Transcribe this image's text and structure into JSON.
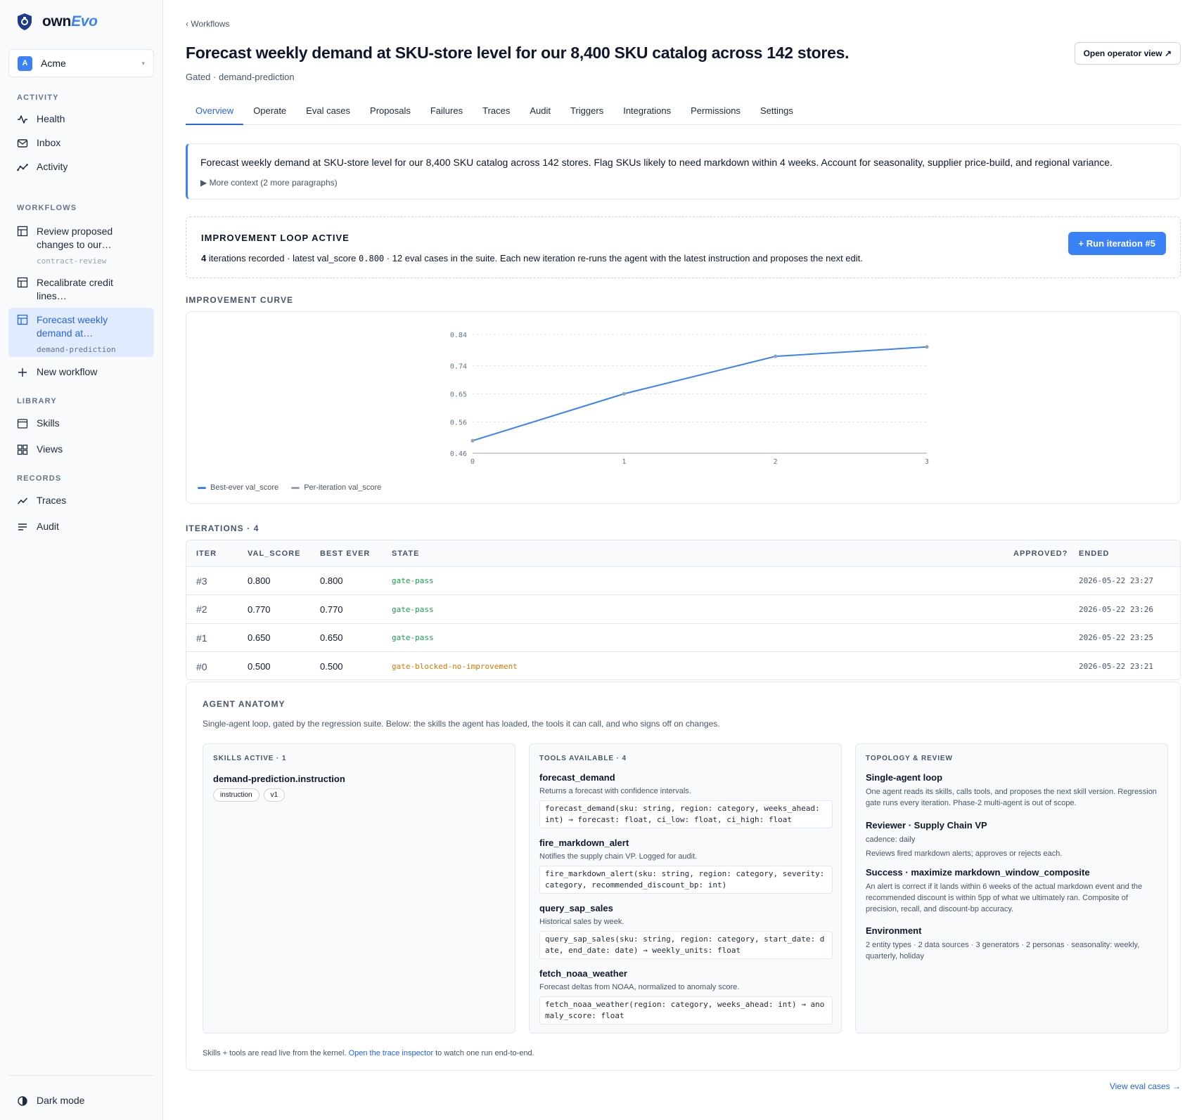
{
  "brand": {
    "name_prefix": "own",
    "name_suffix": "Evo"
  },
  "org": {
    "avatar": "A",
    "name": "Acme"
  },
  "sidebar": {
    "sections": {
      "activity": "ACTIVITY",
      "workflows": "WORKFLOWS",
      "library": "LIBRARY",
      "records": "RECORDS"
    },
    "activity_items": [
      {
        "label": "Health",
        "icon": "pulse-icon"
      },
      {
        "label": "Inbox",
        "icon": "inbox-icon"
      },
      {
        "label": "Activity",
        "icon": "activity-icon"
      }
    ],
    "workflows": [
      {
        "label": "Review proposed changes to our…",
        "slug": "contract-review"
      },
      {
        "label": "Recalibrate credit lines…",
        "slug": "credit-risk"
      },
      {
        "label": "Forecast weekly demand at…",
        "slug": "demand-prediction"
      }
    ],
    "new_workflow": "New workflow",
    "library_items": [
      {
        "label": "Skills",
        "icon": "window-icon"
      },
      {
        "label": "Views",
        "icon": "grid-icon"
      }
    ],
    "records_items": [
      {
        "label": "Traces",
        "icon": "trend-icon"
      },
      {
        "label": "Audit",
        "icon": "list-icon"
      }
    ],
    "dark_mode": "Dark mode"
  },
  "header": {
    "breadcrumb": "‹ Workflows",
    "title": "Forecast weekly demand at SKU-store level for our 8,400 SKU catalog across 142 stores.",
    "subtitle": "Gated · demand-prediction",
    "operator_button": "Open operator view ↗"
  },
  "tabs": [
    "Overview",
    "Operate",
    "Eval cases",
    "Proposals",
    "Failures",
    "Traces",
    "Audit",
    "Triggers",
    "Integrations",
    "Permissions",
    "Settings"
  ],
  "instruction": {
    "text": "Forecast weekly demand at SKU-store level for our 8,400 SKU catalog across 142 stores. Flag SKUs likely to need markdown within 4 weeks. Account for seasonality, supplier price-build, and regional variance.",
    "more": "▶  More context (2 more paragraphs)"
  },
  "loop": {
    "title": "IMPROVEMENT LOOP ACTIVE",
    "iterations": "4",
    "text_a": " iterations recorded · latest val_score ",
    "latest_score": "0.800",
    "text_b": " · 12 eval cases in the suite. Each new iteration re-runs the agent with the latest instruction and proposes the next edit.",
    "run_button": "+ Run iteration #5"
  },
  "curve_label": "IMPROVEMENT CURVE",
  "chart_data": {
    "type": "line",
    "x": [
      0,
      1,
      2,
      3
    ],
    "series": [
      {
        "name": "Best-ever val_score",
        "values": [
          0.5,
          0.65,
          0.77,
          0.8
        ],
        "color": "#3b82f6"
      },
      {
        "name": "Per-iteration val_score",
        "values": [
          0.5,
          0.65,
          0.77,
          0.8
        ],
        "color": "#94a3b8"
      }
    ],
    "y_ticks": [
      "0.84",
      "0.74",
      "0.65",
      "0.56",
      "0.46"
    ],
    "x_ticks": [
      "0",
      "1",
      "2",
      "3"
    ],
    "ylim": [
      0.46,
      0.84
    ],
    "grid": true,
    "legend": "bottom-left"
  },
  "iterations_label": "ITERATIONS · 4",
  "table": {
    "headers": {
      "iter": "ITER",
      "val": "VAL_SCORE",
      "best": "BEST EVER",
      "state": "STATE",
      "approved": "APPROVED?",
      "ended": "ENDED"
    },
    "rows": [
      {
        "iter": "#3",
        "val": "0.800",
        "best": "0.800",
        "state": "gate-pass",
        "ended": "2026-05-22 23:27"
      },
      {
        "iter": "#2",
        "val": "0.770",
        "best": "0.770",
        "state": "gate-pass",
        "ended": "2026-05-22 23:26"
      },
      {
        "iter": "#1",
        "val": "0.650",
        "best": "0.650",
        "state": "gate-pass",
        "ended": "2026-05-22 23:25"
      },
      {
        "iter": "#0",
        "val": "0.500",
        "best": "0.500",
        "state": "gate-blocked-no-improvement",
        "ended": "2026-05-22 23:21"
      }
    ]
  },
  "anatomy": {
    "title": "AGENT ANATOMY",
    "desc": "Single-agent loop, gated by the regression suite. Below: the skills the agent has loaded, the tools it can call, and who signs off on changes.",
    "skills": {
      "label": "SKILLS ACTIVE · 1",
      "name": "demand-prediction.instruction",
      "pills": [
        "instruction",
        "v1"
      ]
    },
    "tools": {
      "label": "TOOLS AVAILABLE · 4",
      "items": [
        {
          "name": "forecast_demand",
          "desc": "Returns a forecast with confidence intervals.",
          "sig": "forecast_demand(sku: string, region: category, weeks_ahead:\nint) → forecast: float, ci_low: float, ci_high: float"
        },
        {
          "name": "fire_markdown_alert",
          "desc": "Notifies the supply chain VP. Logged for audit.",
          "sig": "fire_markdown_alert(sku: string, region: category, severity:\ncategory, recommended_discount_bp: int)"
        },
        {
          "name": "query_sap_sales",
          "desc": "Historical sales by week.",
          "sig": "query_sap_sales(sku: string, region: category, start_date: d\nate, end_date: date) → weekly_units: float"
        },
        {
          "name": "fetch_noaa_weather",
          "desc": "Forecast deltas from NOAA, normalized to anomaly score.",
          "sig": "fetch_noaa_weather(region: category, weeks_ahead: int) → ano\nmaly_score: float"
        }
      ]
    },
    "topology": {
      "label": "TOPOLOGY & REVIEW",
      "items": [
        {
          "name": "Single-agent loop",
          "text": "One agent reads its skills, calls tools, and proposes the next skill version. Regression gate runs every iteration. Phase-2 multi-agent is out of scope."
        },
        {
          "name": "Reviewer · Supply Chain VP",
          "text": "cadence: daily",
          "text2": "Reviews fired markdown alerts; approves or rejects each."
        },
        {
          "name": "Success · maximize markdown_window_composite",
          "text": "An alert is correct if it lands within 6 weeks of the actual markdown event and the recommended discount is within 5pp of what we ultimately ran. Composite of precision, recall, and discount-bp accuracy."
        },
        {
          "name": "Environment",
          "text": "2 entity types · 2 data sources · 3 generators · 2 personas · seasonality: weekly, quarterly, holiday"
        }
      ]
    },
    "footer_a": "Skills + tools are read live from the kernel. ",
    "footer_link": "Open the trace inspector",
    "footer_b": " to watch one run end-to-end."
  },
  "view_eval_cases": "View eval cases →"
}
